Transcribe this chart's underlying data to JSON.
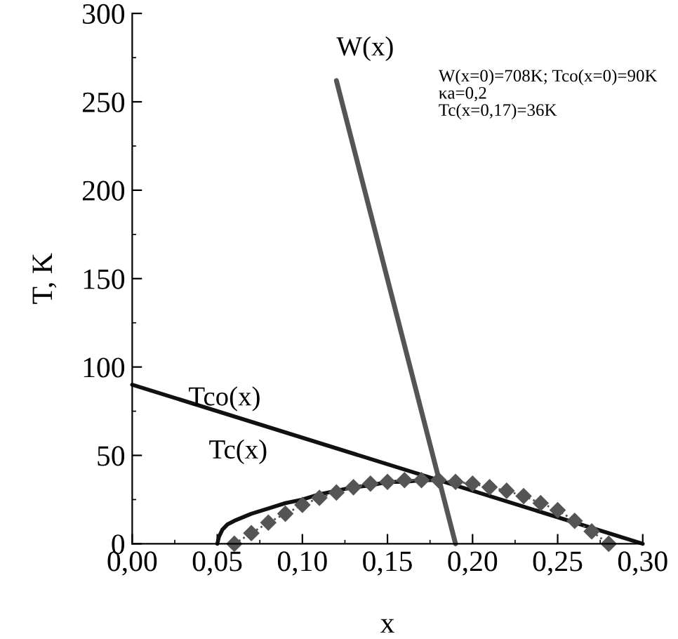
{
  "chart_data": {
    "type": "line",
    "xlabel": "x",
    "ylabel": "T, K",
    "xlim": [
      0,
      0.3
    ],
    "ylim": [
      0,
      300
    ],
    "xticks": [
      {
        "value": 0,
        "label": "0,00"
      },
      {
        "value": 0.05,
        "label": "0,05"
      },
      {
        "value": 0.1,
        "label": "0,10"
      },
      {
        "value": 0.15,
        "label": "0,15"
      },
      {
        "value": 0.2,
        "label": "0,20"
      },
      {
        "value": 0.25,
        "label": "0,25"
      },
      {
        "value": 0.3,
        "label": "0,30"
      }
    ],
    "yticks": [
      0,
      50,
      100,
      150,
      200,
      250,
      300
    ],
    "grid": false,
    "legend": false,
    "series": [
      {
        "color": "#555555",
        "x": [
          0.12,
          0.19
        ],
        "values": [
          262,
          0
        ]
      },
      {
        "color": "#111111",
        "x": [
          0,
          0.3
        ],
        "values": [
          90,
          0
        ]
      },
      {
        "color": "#111111",
        "x": [
          0.05,
          0.051,
          0.053,
          0.056,
          0.06,
          0.07,
          0.08,
          0.09,
          0.1,
          0.11,
          0.12,
          0.13,
          0.14,
          0.15,
          0.16,
          0.17,
          0.18
        ],
        "values": [
          0,
          4,
          8,
          11,
          13,
          17,
          20,
          23,
          25,
          28,
          30,
          32,
          33,
          35,
          35,
          36,
          36
        ]
      },
      {
        "color": "#555555",
        "marker": "diamond",
        "line_style": "dotted",
        "x": [
          0.06,
          0.07,
          0.08,
          0.09,
          0.1,
          0.11,
          0.12,
          0.13,
          0.14,
          0.15,
          0.16,
          0.17,
          0.18,
          0.19,
          0.2,
          0.21,
          0.22,
          0.23,
          0.24,
          0.25,
          0.26,
          0.27,
          0.28
        ],
        "values": [
          0,
          6,
          12,
          17,
          22,
          26,
          29,
          32,
          34,
          35,
          36,
          36,
          36,
          35,
          34,
          32,
          30,
          27,
          23,
          19,
          13,
          7,
          0
        ]
      }
    ],
    "annotations": [
      "W(x)",
      "Tco(x)",
      "Tc(x)",
      "W(x=0)=708K; Tco(x=0)=90K\nκa=0,2\nTc(x=0,17)=36K"
    ]
  }
}
